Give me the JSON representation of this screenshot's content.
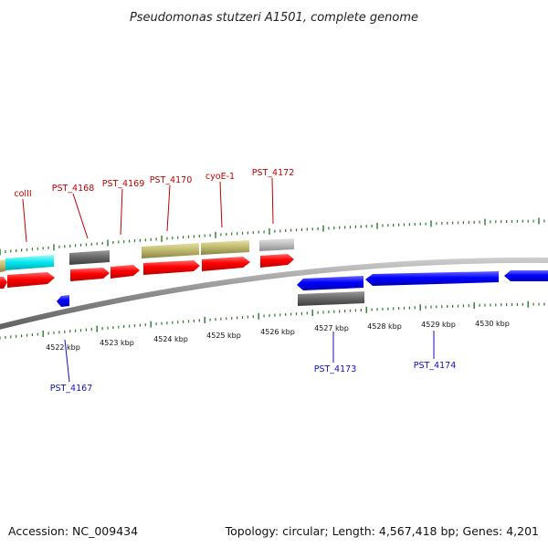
{
  "title": "Pseudomonas stutzeri A1501, complete genome",
  "accession": "Accession: NC_009434",
  "topology": "Topology: circular; Length: 4,567,418 bp; Genes: 4,201",
  "colors": {
    "cds": "#ff0000",
    "cds_reverse": "#0000ff",
    "gene_dark": "#666666",
    "gene_light": "#bbbbbb",
    "cyan": "#00e5ee",
    "olive": "#bdb76b",
    "tick": "#2a7a2a",
    "backbone": "#8c8c8c",
    "label_top": "#c00000",
    "label_bottom": "#1010c0"
  },
  "scale": {
    "unit": "kbp",
    "labels": [
      "4522 kbp",
      "4523 kbp",
      "4524 kbp",
      "4525 kbp",
      "4526 kbp",
      "4527 kbp",
      "4528 kbp",
      "4529 kbp",
      "4530 kbp"
    ]
  },
  "gene_labels_top": [
    "colII",
    "PST_4168",
    "PST_4169",
    "PST_4170",
    "cyoE-1",
    "PST_4172"
  ],
  "gene_labels_bottom": [
    "PST_4167",
    "PST_4173",
    "PST_4174"
  ]
}
